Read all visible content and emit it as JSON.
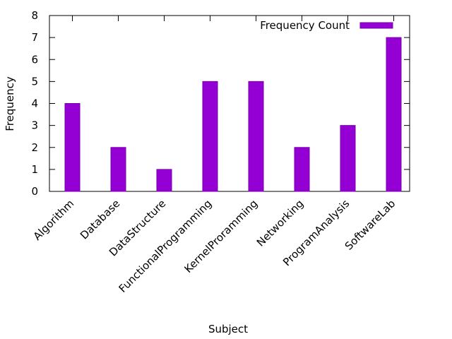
{
  "chart_data": {
    "type": "bar",
    "categories": [
      "Algorithm",
      "Database",
      "DataStructure",
      "FunctionalProgramming",
      "KernelProramming",
      "Networking",
      "ProgramAnalysis",
      "SoftwareLab"
    ],
    "series": [
      {
        "name": "Frequency Count",
        "values": [
          4,
          2,
          1,
          5,
          5,
          2,
          3,
          7
        ]
      }
    ],
    "xlabel": "Subject",
    "ylabel": "Frequency",
    "ylim": [
      0,
      8
    ],
    "yticks": [
      0,
      1,
      2,
      3,
      4,
      5,
      6,
      7,
      8
    ],
    "grid": false,
    "legend_position": "top-right",
    "colors": {
      "bar_fill": "#9400d3",
      "bar_stroke": "#7a00b0"
    }
  }
}
